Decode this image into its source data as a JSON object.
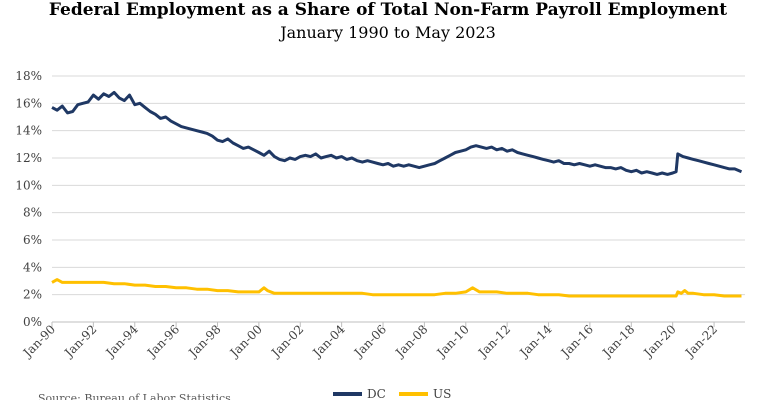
{
  "chart_data": {
    "type": "line",
    "title": "Federal Employment as a Share of Total Non-Farm Payroll Employment",
    "subtitle": "January 1990 to May 2023",
    "source": "Source: Bureau of Labor Statistics",
    "ylim": [
      0,
      18
    ],
    "y_ticks": [
      "0%",
      "2%",
      "4%",
      "6%",
      "8%",
      "10%",
      "12%",
      "14%",
      "16%",
      "18%"
    ],
    "x_ticks": [
      "Jan-90",
      "Jan-92",
      "Jan-94",
      "Jan-96",
      "Jan-98",
      "Jan-00",
      "Jan-02",
      "Jan-04",
      "Jan-06",
      "Jan-08",
      "Jan-10",
      "Jan-12",
      "Jan-14",
      "Jan-16",
      "Jan-18",
      "Jan-20",
      "Jan-22"
    ],
    "grid": true,
    "legend_position": "bottom",
    "colors": {
      "DC": "#1f3864",
      "US": "#ffc000"
    },
    "series": [
      {
        "name": "DC",
        "points": [
          [
            "1990-01",
            15.7
          ],
          [
            "1990-04",
            15.5
          ],
          [
            "1990-07",
            15.8
          ],
          [
            "1990-10",
            15.3
          ],
          [
            "1991-01",
            15.4
          ],
          [
            "1991-04",
            15.9
          ],
          [
            "1991-07",
            16.0
          ],
          [
            "1991-10",
            16.1
          ],
          [
            "1992-01",
            16.6
          ],
          [
            "1992-04",
            16.3
          ],
          [
            "1992-07",
            16.7
          ],
          [
            "1992-10",
            16.5
          ],
          [
            "1993-01",
            16.8
          ],
          [
            "1993-04",
            16.4
          ],
          [
            "1993-07",
            16.2
          ],
          [
            "1993-10",
            16.6
          ],
          [
            "1994-01",
            15.9
          ],
          [
            "1994-04",
            16.0
          ],
          [
            "1994-07",
            15.7
          ],
          [
            "1994-10",
            15.4
          ],
          [
            "1995-01",
            15.2
          ],
          [
            "1995-04",
            14.9
          ],
          [
            "1995-07",
            15.0
          ],
          [
            "1995-10",
            14.7
          ],
          [
            "1996-01",
            14.5
          ],
          [
            "1996-04",
            14.3
          ],
          [
            "1996-07",
            14.2
          ],
          [
            "1996-10",
            14.1
          ],
          [
            "1997-01",
            14.0
          ],
          [
            "1997-04",
            13.9
          ],
          [
            "1997-07",
            13.8
          ],
          [
            "1997-10",
            13.6
          ],
          [
            "1998-01",
            13.3
          ],
          [
            "1998-04",
            13.2
          ],
          [
            "1998-07",
            13.4
          ],
          [
            "1998-10",
            13.1
          ],
          [
            "1999-01",
            12.9
          ],
          [
            "1999-04",
            12.7
          ],
          [
            "1999-07",
            12.8
          ],
          [
            "1999-10",
            12.6
          ],
          [
            "2000-01",
            12.4
          ],
          [
            "2000-04",
            12.2
          ],
          [
            "2000-07",
            12.5
          ],
          [
            "2000-10",
            12.1
          ],
          [
            "2001-01",
            11.9
          ],
          [
            "2001-04",
            11.8
          ],
          [
            "2001-07",
            12.0
          ],
          [
            "2001-10",
            11.9
          ],
          [
            "2002-01",
            12.1
          ],
          [
            "2002-04",
            12.2
          ],
          [
            "2002-07",
            12.1
          ],
          [
            "2002-10",
            12.3
          ],
          [
            "2003-01",
            12.0
          ],
          [
            "2003-04",
            12.1
          ],
          [
            "2003-07",
            12.2
          ],
          [
            "2003-10",
            12.0
          ],
          [
            "2004-01",
            12.1
          ],
          [
            "2004-04",
            11.9
          ],
          [
            "2004-07",
            12.0
          ],
          [
            "2004-10",
            11.8
          ],
          [
            "2005-01",
            11.7
          ],
          [
            "2005-04",
            11.8
          ],
          [
            "2005-07",
            11.7
          ],
          [
            "2005-10",
            11.6
          ],
          [
            "2006-01",
            11.5
          ],
          [
            "2006-04",
            11.6
          ],
          [
            "2006-07",
            11.4
          ],
          [
            "2006-10",
            11.5
          ],
          [
            "2007-01",
            11.4
          ],
          [
            "2007-04",
            11.5
          ],
          [
            "2007-07",
            11.4
          ],
          [
            "2007-10",
            11.3
          ],
          [
            "2008-01",
            11.4
          ],
          [
            "2008-04",
            11.5
          ],
          [
            "2008-07",
            11.6
          ],
          [
            "2008-10",
            11.8
          ],
          [
            "2009-01",
            12.0
          ],
          [
            "2009-04",
            12.2
          ],
          [
            "2009-07",
            12.4
          ],
          [
            "2009-10",
            12.5
          ],
          [
            "2010-01",
            12.6
          ],
          [
            "2010-04",
            12.8
          ],
          [
            "2010-07",
            12.9
          ],
          [
            "2010-10",
            12.8
          ],
          [
            "2011-01",
            12.7
          ],
          [
            "2011-04",
            12.8
          ],
          [
            "2011-07",
            12.6
          ],
          [
            "2011-10",
            12.7
          ],
          [
            "2012-01",
            12.5
          ],
          [
            "2012-04",
            12.6
          ],
          [
            "2012-07",
            12.4
          ],
          [
            "2012-10",
            12.3
          ],
          [
            "2013-01",
            12.2
          ],
          [
            "2013-04",
            12.1
          ],
          [
            "2013-07",
            12.0
          ],
          [
            "2013-10",
            11.9
          ],
          [
            "2014-01",
            11.8
          ],
          [
            "2014-04",
            11.7
          ],
          [
            "2014-07",
            11.8
          ],
          [
            "2014-10",
            11.6
          ],
          [
            "2015-01",
            11.6
          ],
          [
            "2015-04",
            11.5
          ],
          [
            "2015-07",
            11.6
          ],
          [
            "2015-10",
            11.5
          ],
          [
            "2016-01",
            11.4
          ],
          [
            "2016-04",
            11.5
          ],
          [
            "2016-07",
            11.4
          ],
          [
            "2016-10",
            11.3
          ],
          [
            "2017-01",
            11.3
          ],
          [
            "2017-04",
            11.2
          ],
          [
            "2017-07",
            11.3
          ],
          [
            "2017-10",
            11.1
          ],
          [
            "2018-01",
            11.0
          ],
          [
            "2018-04",
            11.1
          ],
          [
            "2018-07",
            10.9
          ],
          [
            "2018-10",
            11.0
          ],
          [
            "2019-01",
            10.9
          ],
          [
            "2019-04",
            10.8
          ],
          [
            "2019-07",
            10.9
          ],
          [
            "2019-10",
            10.8
          ],
          [
            "2020-01",
            10.9
          ],
          [
            "2020-03",
            11.0
          ],
          [
            "2020-04",
            12.3
          ],
          [
            "2020-07",
            12.1
          ],
          [
            "2020-10",
            12.0
          ],
          [
            "2021-01",
            11.9
          ],
          [
            "2021-04",
            11.8
          ],
          [
            "2021-07",
            11.7
          ],
          [
            "2021-10",
            11.6
          ],
          [
            "2022-01",
            11.5
          ],
          [
            "2022-04",
            11.4
          ],
          [
            "2022-07",
            11.3
          ],
          [
            "2022-10",
            11.2
          ],
          [
            "2023-01",
            11.2
          ],
          [
            "2023-05",
            11.0
          ]
        ]
      },
      {
        "name": "US",
        "points": [
          [
            "1990-01",
            2.9
          ],
          [
            "1990-04",
            3.1
          ],
          [
            "1990-07",
            2.9
          ],
          [
            "1990-10",
            2.9
          ],
          [
            "1991-01",
            2.9
          ],
          [
            "1991-07",
            2.9
          ],
          [
            "1992-01",
            2.9
          ],
          [
            "1992-07",
            2.9
          ],
          [
            "1993-01",
            2.8
          ],
          [
            "1993-07",
            2.8
          ],
          [
            "1994-01",
            2.7
          ],
          [
            "1994-07",
            2.7
          ],
          [
            "1995-01",
            2.6
          ],
          [
            "1995-07",
            2.6
          ],
          [
            "1996-01",
            2.5
          ],
          [
            "1996-07",
            2.5
          ],
          [
            "1997-01",
            2.4
          ],
          [
            "1997-07",
            2.4
          ],
          [
            "1998-01",
            2.3
          ],
          [
            "1998-07",
            2.3
          ],
          [
            "1999-01",
            2.2
          ],
          [
            "1999-07",
            2.2
          ],
          [
            "2000-01",
            2.2
          ],
          [
            "2000-04",
            2.5
          ],
          [
            "2000-06",
            2.3
          ],
          [
            "2000-10",
            2.1
          ],
          [
            "2001-01",
            2.1
          ],
          [
            "2001-07",
            2.1
          ],
          [
            "2002-01",
            2.1
          ],
          [
            "2002-07",
            2.1
          ],
          [
            "2003-01",
            2.1
          ],
          [
            "2003-07",
            2.1
          ],
          [
            "2004-01",
            2.1
          ],
          [
            "2004-07",
            2.1
          ],
          [
            "2005-01",
            2.1
          ],
          [
            "2005-07",
            2.0
          ],
          [
            "2006-01",
            2.0
          ],
          [
            "2006-07",
            2.0
          ],
          [
            "2007-01",
            2.0
          ],
          [
            "2007-07",
            2.0
          ],
          [
            "2008-01",
            2.0
          ],
          [
            "2008-07",
            2.0
          ],
          [
            "2009-01",
            2.1
          ],
          [
            "2009-07",
            2.1
          ],
          [
            "2010-01",
            2.2
          ],
          [
            "2010-05",
            2.5
          ],
          [
            "2010-09",
            2.2
          ],
          [
            "2011-01",
            2.2
          ],
          [
            "2011-07",
            2.2
          ],
          [
            "2012-01",
            2.1
          ],
          [
            "2012-07",
            2.1
          ],
          [
            "2013-01",
            2.1
          ],
          [
            "2013-07",
            2.0
          ],
          [
            "2014-01",
            2.0
          ],
          [
            "2014-07",
            2.0
          ],
          [
            "2015-01",
            1.9
          ],
          [
            "2015-07",
            1.9
          ],
          [
            "2016-01",
            1.9
          ],
          [
            "2016-07",
            1.9
          ],
          [
            "2017-01",
            1.9
          ],
          [
            "2017-07",
            1.9
          ],
          [
            "2018-01",
            1.9
          ],
          [
            "2018-07",
            1.9
          ],
          [
            "2019-01",
            1.9
          ],
          [
            "2019-07",
            1.9
          ],
          [
            "2020-01",
            1.9
          ],
          [
            "2020-03",
            1.9
          ],
          [
            "2020-04",
            2.2
          ],
          [
            "2020-06",
            2.1
          ],
          [
            "2020-08",
            2.3
          ],
          [
            "2020-10",
            2.1
          ],
          [
            "2021-01",
            2.1
          ],
          [
            "2021-07",
            2.0
          ],
          [
            "2022-01",
            2.0
          ],
          [
            "2022-07",
            1.9
          ],
          [
            "2023-01",
            1.9
          ],
          [
            "2023-05",
            1.9
          ]
        ]
      }
    ]
  }
}
